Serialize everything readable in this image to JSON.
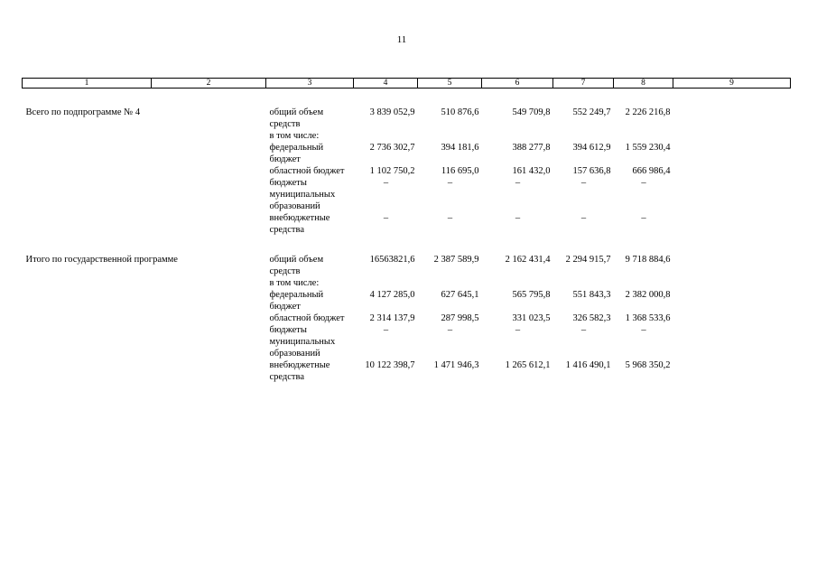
{
  "page_number": "11",
  "columns": [
    "1",
    "2",
    "3",
    "4",
    "5",
    "6",
    "7",
    "8",
    "9"
  ],
  "sections": [
    {
      "title": "Всего по подпрограмме № 4",
      "rows": [
        {
          "label": "общий объем средств",
          "values": [
            "3 839 052,9",
            "510 876,6",
            "549 709,8",
            "552 249,7",
            "2 226 216,8"
          ]
        },
        {
          "label": "в том числе:",
          "values": []
        },
        {
          "label": "федеральный бюджет",
          "values": [
            "2 736 302,7",
            "394 181,6",
            "388 277,8",
            "394 612,9",
            "1 559 230,4"
          ]
        },
        {
          "label": "областной бюджет",
          "values": [
            "1 102 750,2",
            "116 695,0",
            "161 432,0",
            "157 636,8",
            "666 986,4"
          ]
        },
        {
          "label": "бюджеты муниципальных образований",
          "values": [
            "–",
            "–",
            "–",
            "–",
            "–"
          ]
        },
        {
          "label": "внебюджетные средства",
          "values": [
            "–",
            "–",
            "–",
            "–",
            "–"
          ]
        }
      ]
    },
    {
      "title": "Итого по государственной программе",
      "rows": [
        {
          "label": "общий объем средств",
          "values": [
            "16563821,6",
            "2 387 589,9",
            "2 162 431,4",
            "2 294 915,7",
            "9 718 884,6"
          ]
        },
        {
          "label": "в том числе:",
          "values": []
        },
        {
          "label": "федеральный бюджет",
          "values": [
            "4 127 285,0",
            "627 645,1",
            "565 795,8",
            "551 843,3",
            "2 382 000,8"
          ]
        },
        {
          "label": "областной бюджет",
          "values": [
            "2 314 137,9",
            "287 998,5",
            "331 023,5",
            "326 582,3",
            "1 368 533,6"
          ]
        },
        {
          "label": "бюджеты муниципальных образований",
          "values": [
            "–",
            "–",
            "–",
            "–",
            "–"
          ]
        },
        {
          "label": "внебюджетные средства",
          "values": [
            "10 122 398,7",
            "1 471 946,3",
            "1 265 612,1",
            "1 416 490,1",
            "5 968 350,2"
          ]
        }
      ]
    }
  ]
}
